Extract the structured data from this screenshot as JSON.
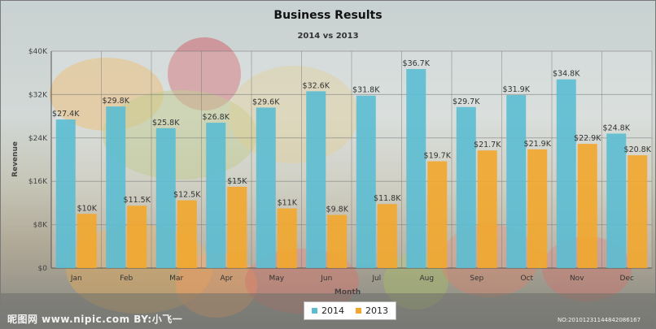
{
  "watermark": {
    "left": "昵图网 www.nipic.com    BY:小飞一",
    "right": "NO:20101231144842086167"
  },
  "colors": {
    "series_2014": "#5bbcd2",
    "series_2013": "#f2a72c"
  },
  "chart_data": {
    "type": "bar",
    "title": "Business Results",
    "subtitle": "2014 vs 2013",
    "xlabel": "Month",
    "ylabel": "Revenue",
    "ylim": [
      0,
      40000
    ],
    "yticks": [
      0,
      8000,
      16000,
      24000,
      32000,
      40000
    ],
    "ytick_labels": [
      "$0",
      "$8K",
      "$16K",
      "$24K",
      "$32K",
      "$40K"
    ],
    "grid": true,
    "legend_position": "bottom-center",
    "categories": [
      "Jan",
      "Feb",
      "Mar",
      "Apr",
      "May",
      "Jun",
      "Jul",
      "Aug",
      "Sep",
      "Oct",
      "Nov",
      "Dec"
    ],
    "series": [
      {
        "name": "2014",
        "values": [
          27400,
          29800,
          25800,
          26800,
          29600,
          32600,
          31800,
          36700,
          29700,
          31900,
          34800,
          24800
        ],
        "labels": [
          "$27.4K",
          "$29.8K",
          "$25.8K",
          "$26.8K",
          "$29.6K",
          "$32.6K",
          "$31.8K",
          "$36.7K",
          "$29.7K",
          "$31.9K",
          "$34.8K",
          "$24.8K"
        ]
      },
      {
        "name": "2013",
        "values": [
          10000,
          11500,
          12500,
          15000,
          11000,
          9800,
          11800,
          19700,
          21700,
          21900,
          22900,
          20800
        ],
        "labels": [
          "$10K",
          "$11.5K",
          "$12.5K",
          "$15K",
          "$11K",
          "$9.8K",
          "$11.8K",
          "$19.7K",
          "$21.7K",
          "$21.9K",
          "$22.9K",
          "$20.8K"
        ]
      }
    ]
  }
}
